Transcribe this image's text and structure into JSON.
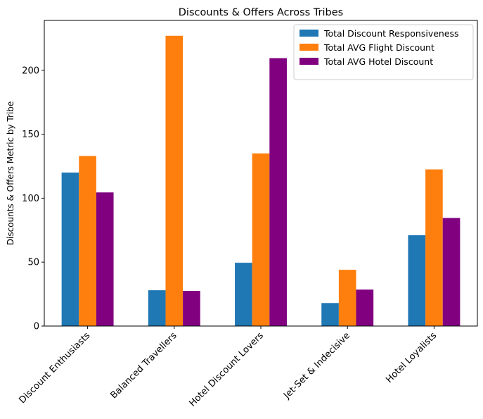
{
  "chart_data": {
    "type": "bar",
    "title": "Discounts & Offers Across Tribes",
    "xlabel": "",
    "ylabel": "Discounts & Offers Metric by Tribe",
    "ylim": [
      0,
      239
    ],
    "yticks": [
      0,
      50,
      100,
      150,
      200
    ],
    "categories": [
      "Discount Enthusiasts",
      "Balanced Travellers",
      "Hotel Discount Lovers",
      "Jet-Set & Indecisive",
      "Hotel Loyalists"
    ],
    "series": [
      {
        "name": "Total Discount Responsiveness",
        "color": "#1f77b4",
        "values": [
          120,
          28,
          49.5,
          18,
          71
        ]
      },
      {
        "name": "Total AVG Flight Discount",
        "color": "#ff7f0e",
        "values": [
          133,
          227,
          135,
          44,
          122.5
        ]
      },
      {
        "name": "Total AVG Hotel Discount",
        "color": "#800080",
        "values": [
          104.5,
          27.5,
          209.5,
          28.5,
          84.5
        ]
      }
    ],
    "grid": false,
    "legend_position": "top-right"
  }
}
